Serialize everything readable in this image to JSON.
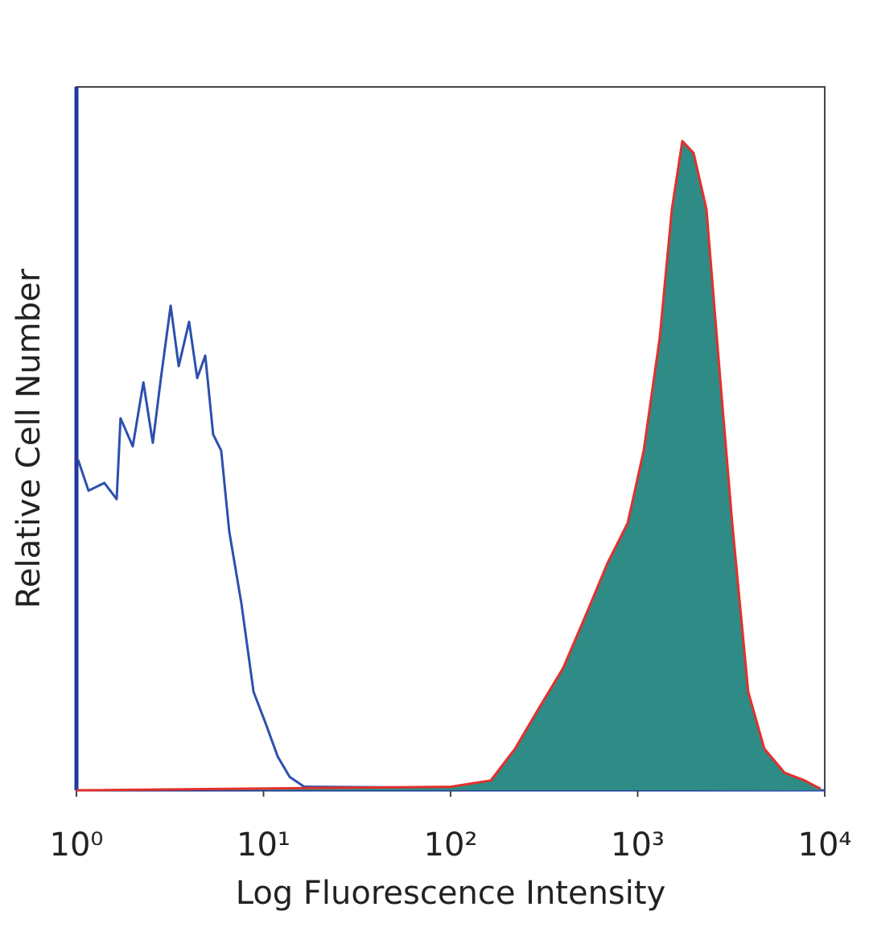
{
  "chart_data": {
    "type": "histogram-overlay",
    "xlabel": "Log Fluorescence Intensity",
    "ylabel": "Relative Cell Number",
    "xscale": "log",
    "xlim": [
      1,
      10000
    ],
    "xticks": [
      {
        "value": 1,
        "label": "10⁰"
      },
      {
        "value": 10,
        "label": "10¹"
      },
      {
        "value": 100,
        "label": "10²"
      },
      {
        "value": 1000,
        "label": "10³"
      },
      {
        "value": 10000,
        "label": "10⁴"
      }
    ],
    "ylim": [
      0,
      100
    ],
    "series": [
      {
        "color": "#2d4fae",
        "fill": null,
        "x": [
          1.02,
          1.16,
          1.41,
          1.64,
          1.72,
          2.0,
          2.28,
          2.56,
          2.83,
          3.19,
          3.52,
          4.0,
          4.42,
          4.88,
          5.38,
          5.94,
          6.56,
          7.62,
          8.84,
          10.3,
          11.9,
          13.8,
          16.5,
          10000
        ],
        "values": [
          47,
          42.6,
          43.7,
          41.4,
          52.9,
          48.9,
          58,
          49.4,
          58.6,
          68.9,
          60.3,
          66.6,
          58.6,
          61.8,
          50.6,
          48.3,
          36.8,
          26.5,
          14,
          9.4,
          4.8,
          1.9,
          0.5,
          0
        ]
      },
      {
        "color": "#e3302c",
        "fill": "#2e8b86",
        "x": [
          1,
          100,
          164,
          221,
          297,
          400,
          538,
          690,
          884,
          1077,
          1312,
          1524,
          1733,
          1991,
          2333,
          2760,
          3201,
          3901,
          4753,
          6095,
          7805,
          9510
        ],
        "values": [
          0,
          0.5,
          1.4,
          5.9,
          11.7,
          17.4,
          25.4,
          32.3,
          38,
          48.3,
          64.3,
          82.6,
          92.3,
          90.6,
          82.6,
          58.6,
          38,
          14,
          5.9,
          2.5,
          1.4,
          0.2
        ]
      }
    ]
  }
}
